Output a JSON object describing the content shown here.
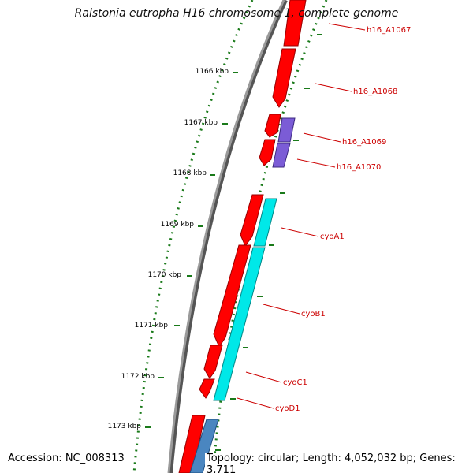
{
  "title": "Ralstonia eutropha H16 chromosome 1, complete genome",
  "footer": {
    "accession": "Accession: NC_008313",
    "summary": "Topology: circular; Length: 4,052,032 bp; Genes: 3,711"
  },
  "kbp_labels": [
    "1166 kbp",
    "1167 kbp",
    "1168 kbp",
    "1169 kbp",
    "1170 kbp",
    "1171 kbp",
    "1172 kbp",
    "1173 kbp"
  ],
  "gene_labels": [
    "h16_A1067",
    "h16_A1068",
    "h16_A1069",
    "h16_A1070",
    "cyoA1",
    "cyoB1",
    "cyoC1",
    "cyoD1"
  ],
  "colors": {
    "backbone": "#8c8c8c",
    "cds": "#ff0000",
    "cyo_genes": "#00e8e8",
    "purple_genes": "#7b5cd6",
    "blue_gene": "#4a86c0",
    "ticks": "#1a7a1a",
    "gene_label": "#cc0000"
  }
}
